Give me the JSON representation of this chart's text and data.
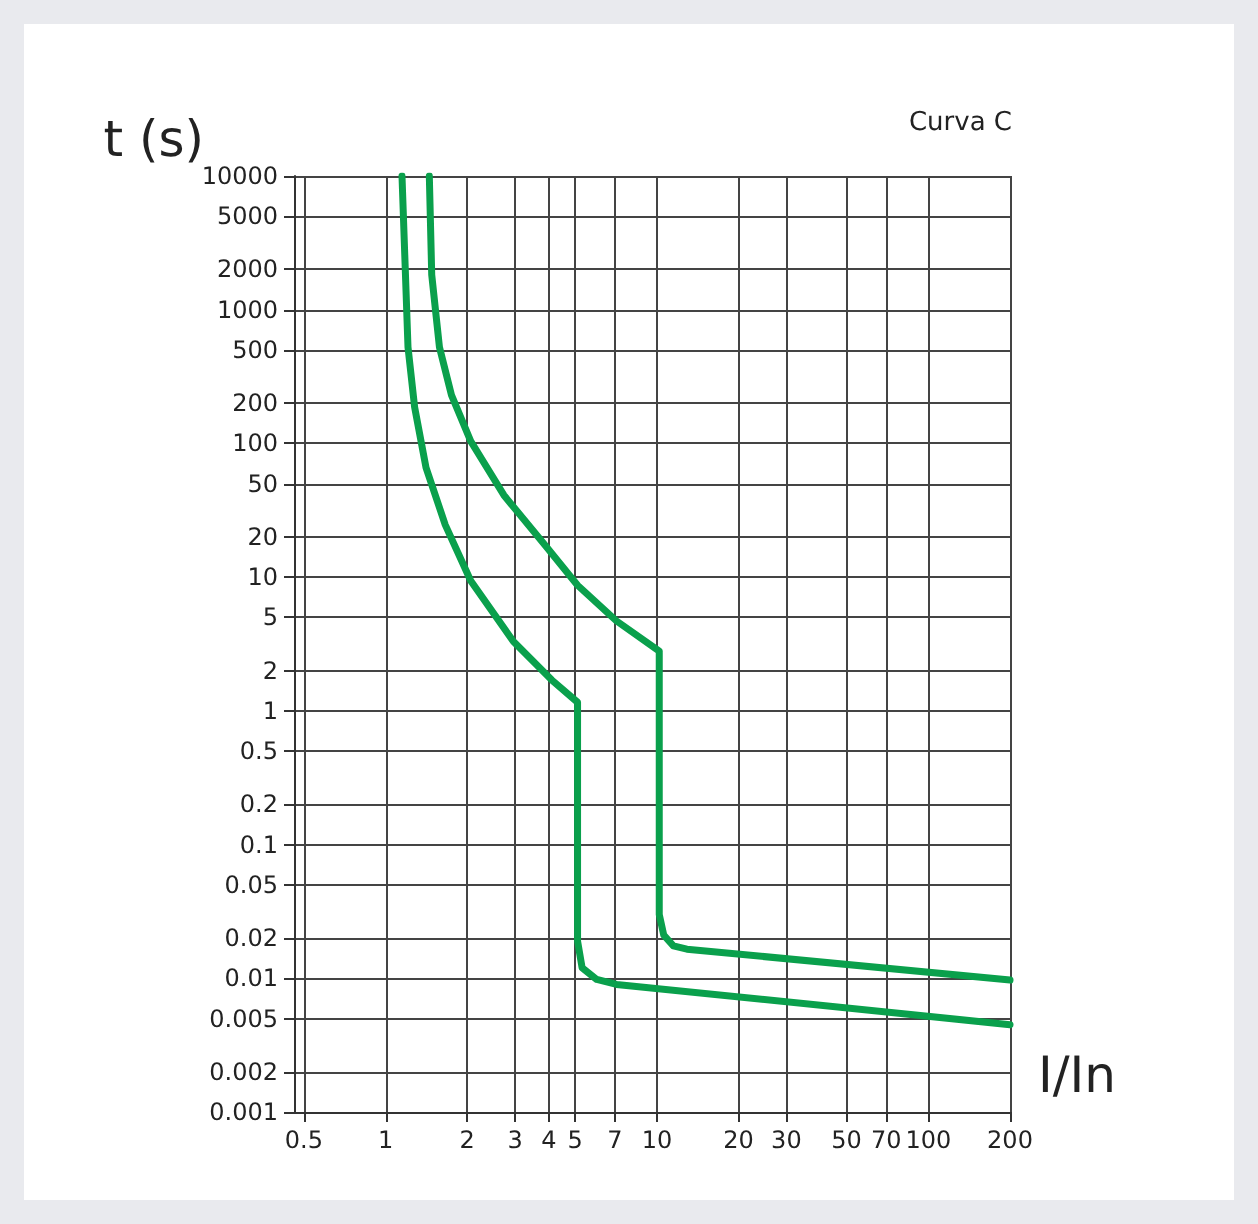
{
  "chart_data": {
    "type": "line",
    "title": "Curva C",
    "xlabel": "I/In",
    "ylabel": "t (s)",
    "log": "xy",
    "grid": true,
    "marker": "none",
    "line_style": "solid",
    "xlim": [
      0.46,
      200
    ],
    "xticks": [
      0.5,
      1,
      2,
      3,
      4,
      5,
      7,
      10,
      20,
      30,
      50,
      70,
      100,
      200
    ],
    "ylim": [
      0.001,
      10000
    ],
    "yticks": [
      0.001,
      0.002,
      0.005,
      0.01,
      0.02,
      0.05,
      0.1,
      0.2,
      0.5,
      1,
      2,
      5,
      10,
      20,
      50,
      100,
      200,
      500,
      1000,
      2000,
      5000,
      10000
    ],
    "series": [
      {
        "color": "#0aa04c",
        "x": [
          1.15,
          1.21,
          1.28,
          1.41,
          1.66,
          2.06,
          2.96,
          4.1,
          5.1,
          5.1,
          5.3,
          6,
          7.1,
          200
        ],
        "values": [
          10000,
          525,
          187,
          66,
          24.6,
          9.4,
          3.3,
          1.7,
          1.16,
          0.019,
          0.012,
          0.0098,
          0.009,
          0.0045
        ]
      },
      {
        "color": "#0aa04c",
        "x": [
          1.45,
          1.48,
          1.58,
          1.75,
          2.06,
          2.73,
          3.9,
          5.1,
          7.1,
          10.2,
          10.2,
          10.6,
          11.5,
          12.9,
          200
        ],
        "values": [
          10000,
          1820,
          525,
          230,
          104,
          41,
          17,
          8.7,
          4.7,
          2.8,
          0.03,
          0.021,
          0.0175,
          0.0165,
          0.0097
        ]
      }
    ]
  }
}
